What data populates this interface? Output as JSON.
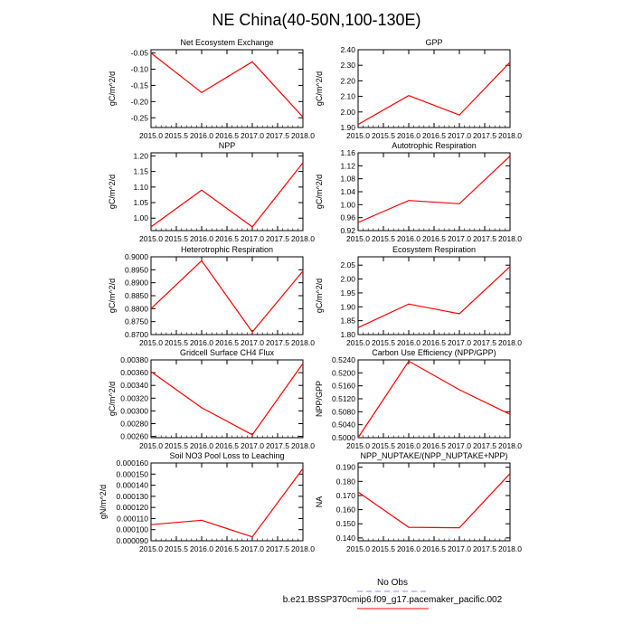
{
  "figure": {
    "title": "NE China(40-50N,100-130E)",
    "legend": {
      "obs_label": "No Obs",
      "obs_color": "#8888ff",
      "case_label": "b.e21.BSSP370cmip6.f09_g17.pacemaker_pacific.002",
      "case_color": "#ff0000"
    }
  },
  "chart_data": [
    {
      "type": "line",
      "title": "Net Ecosystem Exchange",
      "ylabel": "gC/m^2/d",
      "x": [
        2015,
        2016,
        2017,
        2018
      ],
      "y": [
        -0.05,
        -0.172,
        -0.077,
        -0.248
      ],
      "ylim": [
        -0.28,
        -0.04
      ],
      "yticks": [
        "-0.05",
        "-0.10",
        "-0.15",
        "-0.20",
        "-0.25"
      ],
      "ytick_values": [
        -0.05,
        -0.1,
        -0.15,
        -0.2,
        -0.25
      ],
      "xticks": [
        "2015.0",
        "2015.5",
        "2016.0",
        "2016.5",
        "2017.0",
        "2017.5",
        "2018.0"
      ],
      "color": "#ff0000"
    },
    {
      "type": "line",
      "title": "GPP",
      "ylabel": "gC/m^2/d",
      "x": [
        2015,
        2016,
        2017,
        2018
      ],
      "y": [
        1.92,
        2.105,
        1.98,
        2.32
      ],
      "ylim": [
        1.9,
        2.4
      ],
      "yticks": [
        "1.90",
        "2.00",
        "2.10",
        "2.20",
        "2.30",
        "2.40"
      ],
      "ytick_values": [
        1.9,
        2.0,
        2.1,
        2.2,
        2.3,
        2.4
      ],
      "xticks": [
        "2015.0",
        "2015.5",
        "2016.0",
        "2016.5",
        "2017.0",
        "2017.5",
        "2018.0"
      ],
      "color": "#ff0000"
    },
    {
      "type": "line",
      "title": "NPP",
      "ylabel": "gC/m^2/d",
      "x": [
        2015,
        2016,
        2017,
        2018
      ],
      "y": [
        0.972,
        1.09,
        0.972,
        1.178
      ],
      "ylim": [
        0.96,
        1.21
      ],
      "yticks": [
        "1.00",
        "1.05",
        "1.10",
        "1.15",
        "1.20"
      ],
      "ytick_values": [
        1.0,
        1.05,
        1.1,
        1.15,
        1.2
      ],
      "xticks": [
        "2015.0",
        "2015.5",
        "2016.0",
        "2016.5",
        "2017.0",
        "2017.5",
        "2018.0"
      ],
      "color": "#ff0000"
    },
    {
      "type": "line",
      "title": "Autotrophic Respiration",
      "ylabel": "gC/m^2/d",
      "x": [
        2015,
        2016,
        2017,
        2018
      ],
      "y": [
        0.945,
        1.013,
        1.003,
        1.15
      ],
      "ylim": [
        0.92,
        1.16
      ],
      "yticks": [
        "0.92",
        "0.96",
        "1.00",
        "1.04",
        "1.08",
        "1.12",
        "1.16"
      ],
      "ytick_values": [
        0.92,
        0.96,
        1.0,
        1.04,
        1.08,
        1.12,
        1.16
      ],
      "xticks": [
        "2015.0",
        "2015.5",
        "2016.0",
        "2016.5",
        "2017.0",
        "2017.5",
        "2018.0"
      ],
      "color": "#ff0000"
    },
    {
      "type": "line",
      "title": "Heterotrophic Respiration",
      "ylabel": "gC/m^2/d",
      "x": [
        2015,
        2016,
        2017,
        2018
      ],
      "y": [
        0.88,
        0.8985,
        0.871,
        0.8945
      ],
      "ylim": [
        0.87,
        0.9
      ],
      "yticks": [
        "0.8700",
        "0.8750",
        "0.8800",
        "0.8850",
        "0.8900",
        "0.8950",
        "0.9000"
      ],
      "ytick_values": [
        0.87,
        0.875,
        0.88,
        0.885,
        0.89,
        0.895,
        0.9
      ],
      "xticks": [
        "2015.0",
        "2015.5",
        "2016.0",
        "2016.5",
        "2017.0",
        "2017.5",
        "2018.0"
      ],
      "color": "#ff0000"
    },
    {
      "type": "line",
      "title": "Ecosystem Respiration",
      "ylabel": "gC/m^2/d",
      "x": [
        2015,
        2016,
        2017,
        2018
      ],
      "y": [
        1.825,
        1.91,
        1.875,
        2.045
      ],
      "ylim": [
        1.8,
        2.08
      ],
      "yticks": [
        "1.80",
        "1.85",
        "1.90",
        "1.95",
        "2.00",
        "2.05"
      ],
      "ytick_values": [
        1.8,
        1.85,
        1.9,
        1.95,
        2.0,
        2.05
      ],
      "xticks": [
        "2015.0",
        "2015.5",
        "2016.0",
        "2016.5",
        "2017.0",
        "2017.5",
        "2018.0"
      ],
      "color": "#ff0000"
    },
    {
      "type": "line",
      "title": "Gridcell Surface CH4 Flux",
      "ylabel": "gC/m^2/d",
      "x": [
        2015,
        2016,
        2017,
        2018
      ],
      "y": [
        0.003615,
        0.00305,
        0.002625,
        0.003745
      ],
      "ylim": [
        0.00258,
        0.0038
      ],
      "yticks": [
        "0.00260",
        "0.00280",
        "0.00300",
        "0.00320",
        "0.00340",
        "0.00360",
        "0.00380"
      ],
      "ytick_values": [
        0.0026,
        0.0028,
        0.003,
        0.0032,
        0.0034,
        0.0036,
        0.0038
      ],
      "xticks": [
        "2015.0",
        "2015.5",
        "2016.0",
        "2016.5",
        "2017.0",
        "2017.5",
        "2018.0"
      ],
      "color": "#ff0000"
    },
    {
      "type": "line",
      "title": "Carbon Use Efficiency (NPP/GPP)",
      "ylabel": "NPP/GPP",
      "x": [
        2015,
        2016,
        2017,
        2018
      ],
      "y": [
        0.5,
        0.5236,
        0.5148,
        0.5072
      ],
      "ylim": [
        0.5,
        0.524
      ],
      "yticks": [
        "0.5000",
        "0.5040",
        "0.5080",
        "0.5120",
        "0.5160",
        "0.5200",
        "0.5240"
      ],
      "ytick_values": [
        0.5,
        0.504,
        0.508,
        0.512,
        0.516,
        0.52,
        0.524
      ],
      "xticks": [
        "2015.0",
        "2015.5",
        "2016.0",
        "2016.5",
        "2017.0",
        "2017.5",
        "2018.0"
      ],
      "color": "#ff0000"
    },
    {
      "type": "line",
      "title": "Soil NO3 Pool Loss to Leaching",
      "ylabel": "gN/m^2/d",
      "x": [
        2015,
        2016,
        2017,
        2018
      ],
      "y": [
        0.0001045,
        0.0001085,
        9.35e-05,
        0.000155
      ],
      "ylim": [
        9e-05,
        0.00016
      ],
      "yticks": [
        "0.000090",
        "0.000100",
        "0.000110",
        "0.000120",
        "0.000130",
        "0.000140",
        "0.000150",
        "0.000160"
      ],
      "ytick_values": [
        9e-05,
        0.0001,
        0.00011,
        0.00012,
        0.00013,
        0.00014,
        0.00015,
        0.00016
      ],
      "xticks": [
        "2015.0",
        "2015.5",
        "2016.0",
        "2016.5",
        "2017.0",
        "2017.5",
        "2018.0"
      ],
      "color": "#ff0000"
    },
    {
      "type": "line",
      "title": "NPP_NUPTAKE/(NPP_NUPTAKE+NPP)",
      "ylabel": "NA",
      "x": [
        2015,
        2016,
        2017,
        2018
      ],
      "y": [
        0.1725,
        0.1475,
        0.1472,
        0.1855
      ],
      "ylim": [
        0.138,
        0.193
      ],
      "yticks": [
        "0.140",
        "0.150",
        "0.160",
        "0.170",
        "0.180",
        "0.190"
      ],
      "ytick_values": [
        0.14,
        0.15,
        0.16,
        0.17,
        0.18,
        0.19
      ],
      "xticks": [
        "2015.0",
        "2015.5",
        "2016.0",
        "2016.5",
        "2017.0",
        "2017.5",
        "2018.0"
      ],
      "color": "#ff0000"
    }
  ]
}
